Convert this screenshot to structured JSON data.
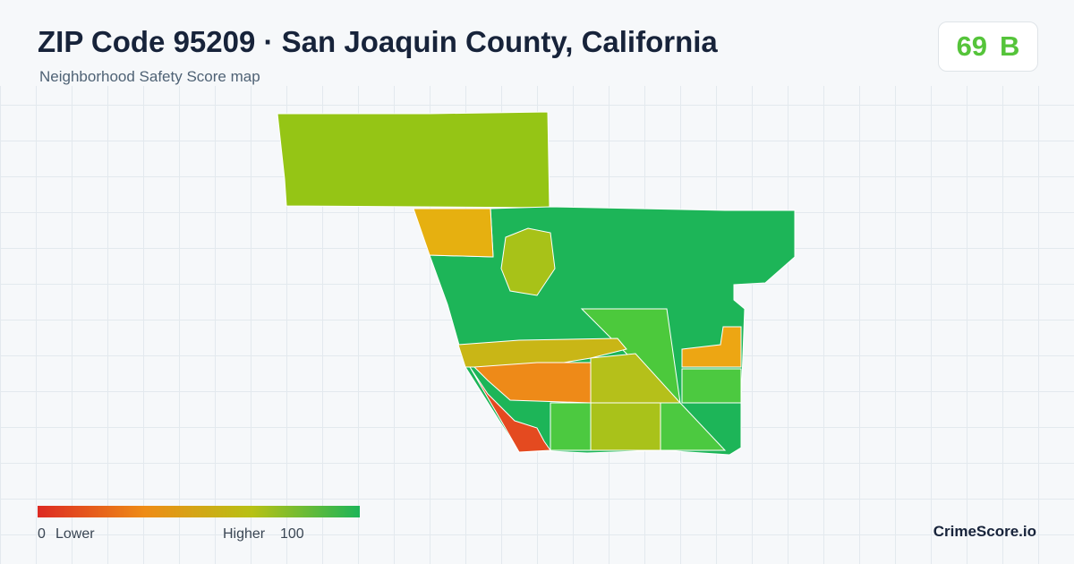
{
  "header": {
    "title": "ZIP Code 95209 · San Joaquin County, California",
    "subtitle": "Neighborhood Safety Score map"
  },
  "score": {
    "value": 69,
    "grade": "B"
  },
  "legend": {
    "min": 0,
    "min_label": "Lower",
    "max_label": "Higher",
    "max": 100
  },
  "brand": "CrimeScore.io"
}
